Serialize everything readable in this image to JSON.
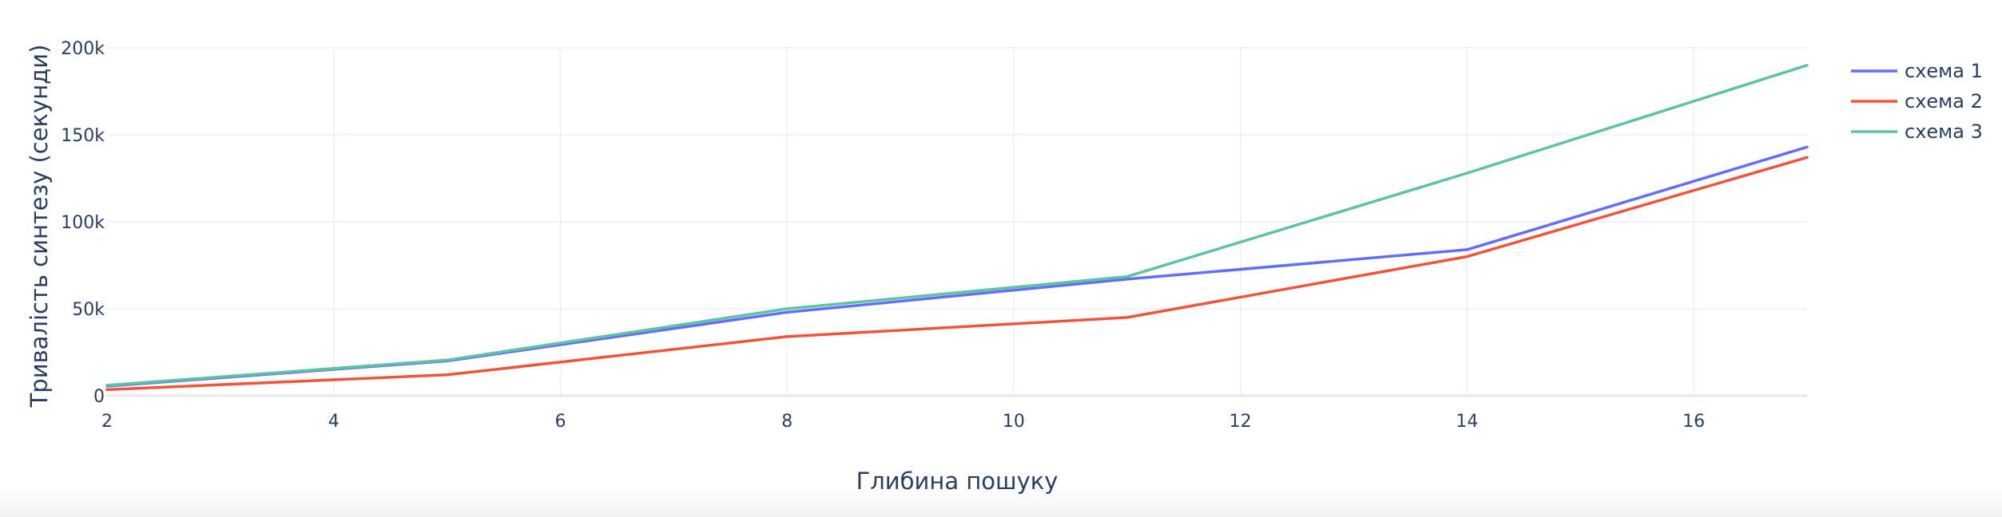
{
  "chart_data": {
    "type": "line",
    "title": "",
    "xlabel": "Глибина пошуку",
    "ylabel": "Тривалість синтезу (секунди)",
    "xlim": [
      2,
      17
    ],
    "ylim": [
      0,
      200000
    ],
    "x_ticks": [
      2,
      4,
      6,
      8,
      10,
      12,
      14,
      16
    ],
    "y_ticks": [
      0,
      50000,
      100000,
      150000,
      200000
    ],
    "x_tick_labels": [
      "2",
      "4",
      "6",
      "8",
      "10",
      "12",
      "14",
      "16"
    ],
    "y_tick_labels": [
      "0",
      "50k",
      "100k",
      "150k",
      "200k"
    ],
    "grid": true,
    "legend_position": "top-right",
    "x": [
      2,
      5,
      8,
      11,
      14,
      17
    ],
    "series": [
      {
        "name": "схема 1",
        "color": "#636efa",
        "values": [
          5500,
          20000,
          48000,
          67000,
          84000,
          143000
        ]
      },
      {
        "name": "схема 2",
        "color": "#ef553b",
        "values": [
          3500,
          12000,
          34000,
          45000,
          80000,
          137000
        ]
      },
      {
        "name": "схема 3",
        "color": "#5ec4a0",
        "values": [
          6000,
          20500,
          50000,
          68500,
          128000,
          190000
        ]
      }
    ]
  }
}
